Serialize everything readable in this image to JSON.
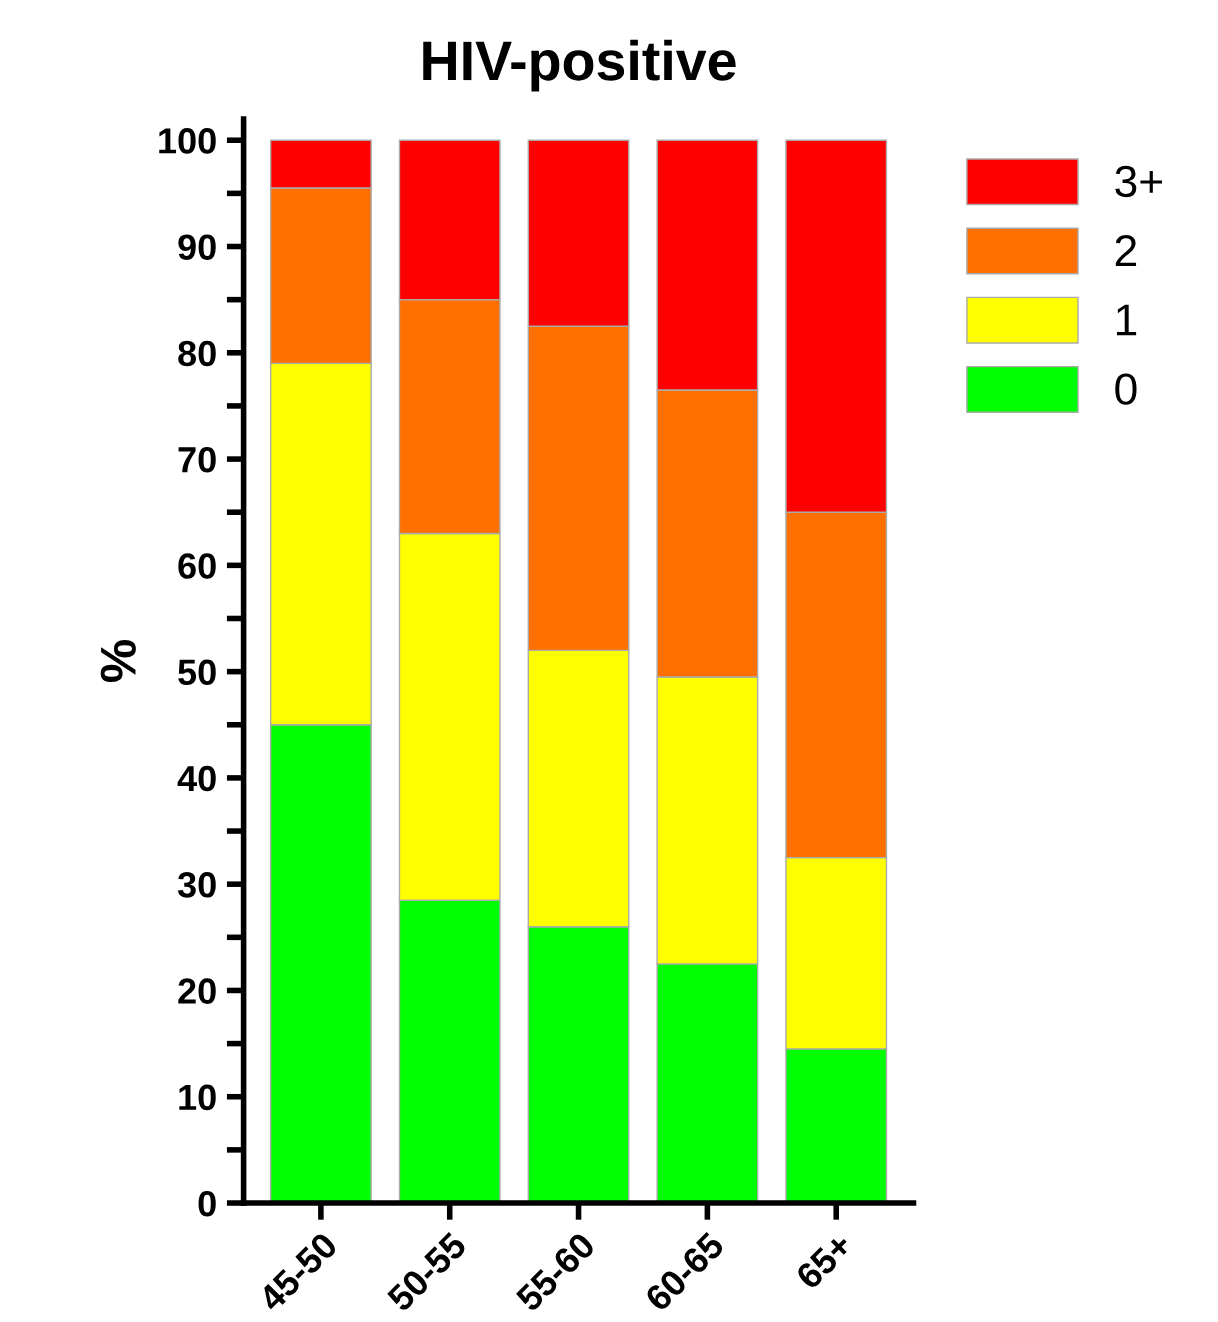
{
  "chart_data": {
    "type": "bar",
    "title": "HIV-positive",
    "ylabel": "%",
    "stacked": true,
    "categories": [
      "45-50",
      "50-55",
      "55-60",
      "60-65",
      "65+"
    ],
    "series": [
      {
        "name": "0",
        "color": "#00ff00",
        "values": [
          45,
          28.5,
          26,
          22.5,
          14.5
        ]
      },
      {
        "name": "1",
        "color": "#ffff00",
        "values": [
          34,
          34.5,
          26,
          27,
          18
        ]
      },
      {
        "name": "2",
        "color": "#ff7000",
        "values": [
          16.5,
          22,
          30.5,
          27,
          32.5
        ]
      },
      {
        "name": "3+",
        "color": "#ff0000",
        "values": [
          4.5,
          15,
          17.5,
          23.5,
          35
        ]
      }
    ],
    "ylim": [
      0,
      102
    ],
    "yticks": [
      0,
      {
        "value": 5,
        "label": null
      },
      10,
      {
        "value": 15,
        "label": null
      },
      20,
      {
        "value": 25,
        "label": null
      },
      30,
      {
        "value": 35,
        "label": null
      },
      40,
      {
        "value": 45,
        "label": null
      },
      50,
      {
        "value": 55,
        "label": null
      },
      60,
      {
        "value": 65,
        "label": null
      },
      70,
      {
        "value": 75,
        "label": null
      },
      80,
      {
        "value": 85,
        "label": null
      },
      90,
      {
        "value": 95,
        "label": null
      },
      100
    ],
    "grid": false,
    "legend": "top right"
  }
}
